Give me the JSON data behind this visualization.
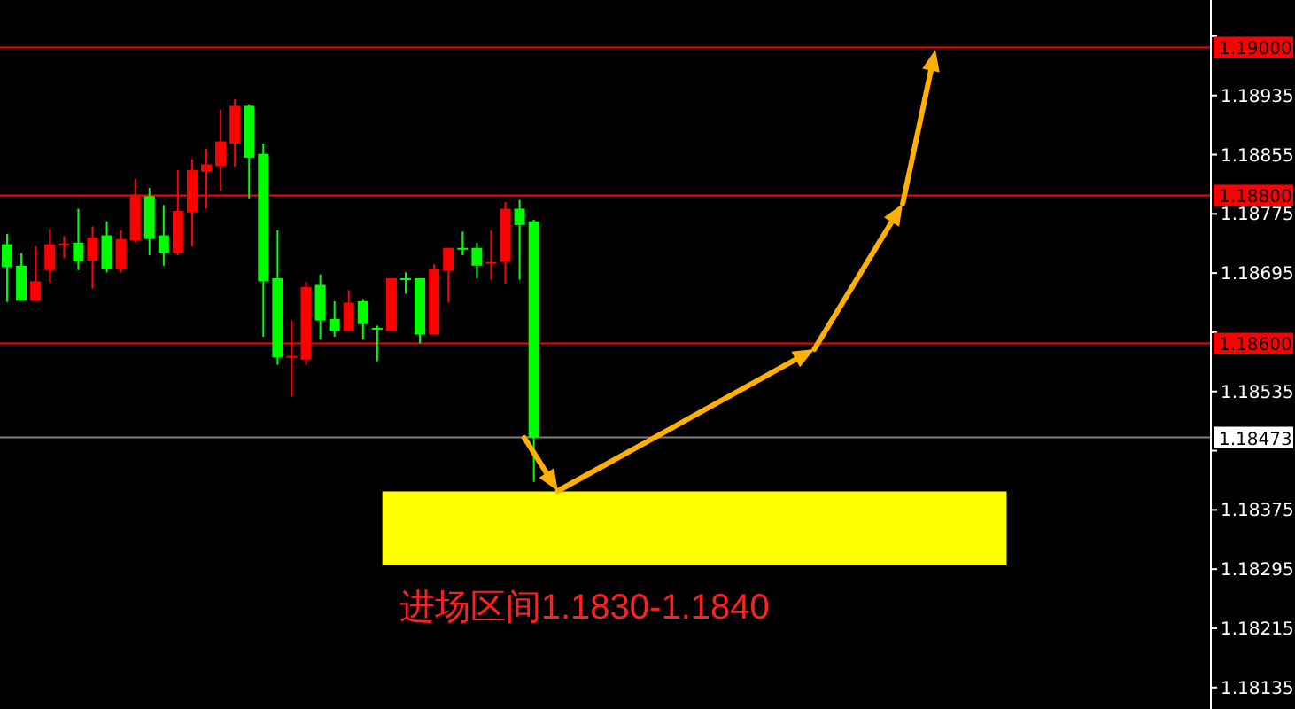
{
  "chart_data": {
    "type": "candlestick",
    "categories": [
      null,
      null,
      null,
      null,
      null,
      null,
      null,
      null,
      null,
      null,
      null,
      null,
      null,
      null,
      null,
      null,
      null,
      null,
      null,
      null,
      null,
      null,
      null,
      null,
      null,
      null,
      null,
      null,
      null,
      null,
      null,
      null,
      null,
      null,
      null,
      null,
      null,
      null,
      null,
      null,
      null,
      null,
      null,
      null,
      null,
      null,
      null,
      null,
      null,
      null,
      null,
      null,
      null,
      null,
      null,
      null,
      null,
      null,
      null,
      null,
      null,
      null,
      null,
      null,
      null,
      null,
      null,
      null,
      null,
      null,
      null,
      null,
      null,
      null,
      null,
      null,
      null,
      null,
      null,
      null,
      null,
      null,
      null,
      null,
      null
    ],
    "ohlc": [
      [
        1.18734,
        1.18748,
        1.18656,
        1.18703
      ],
      [
        1.18705,
        1.18722,
        1.18658,
        1.18658
      ],
      [
        1.18658,
        1.18731,
        1.18658,
        1.18684
      ],
      [
        1.18699,
        1.18755,
        1.18682,
        1.18734
      ],
      [
        1.18735,
        1.18745,
        1.18715,
        1.18735
      ],
      [
        1.18736,
        1.18782,
        1.18699,
        1.18711
      ],
      [
        1.18712,
        1.18758,
        1.18674,
        1.18743
      ],
      [
        1.18746,
        1.18765,
        1.18696,
        1.187
      ],
      [
        1.187,
        1.18753,
        1.18696,
        1.18741
      ],
      [
        1.18739,
        1.18822,
        1.18737,
        1.18801
      ],
      [
        1.18799,
        1.1881,
        1.18719,
        1.18741
      ],
      [
        1.18746,
        1.18787,
        1.18705,
        1.18722
      ],
      [
        1.18722,
        1.18834,
        1.18719,
        1.18779
      ],
      [
        1.18777,
        1.18849,
        1.18731,
        1.18834
      ],
      [
        1.18832,
        1.18863,
        1.18782,
        1.18842
      ],
      [
        1.1884,
        1.18916,
        1.18806,
        1.18873
      ],
      [
        1.1887,
        1.1893,
        1.18839,
        1.18921
      ],
      [
        1.18921,
        1.18923,
        1.18796,
        1.18851
      ],
      [
        1.18856,
        1.1887,
        1.18609,
        1.18684
      ],
      [
        1.18688,
        1.18753,
        1.18571,
        1.18581
      ],
      [
        1.18583,
        1.18631,
        1.18528,
        1.18583
      ],
      [
        1.18578,
        1.18683,
        1.18571,
        1.18676
      ],
      [
        1.18679,
        1.18693,
        1.18605,
        1.18631
      ],
      [
        1.18633,
        1.18657,
        1.18609,
        1.18617
      ],
      [
        1.18617,
        1.18672,
        1.18617,
        1.18655
      ],
      [
        1.18657,
        1.1866,
        1.18605,
        1.18626
      ],
      [
        1.18621,
        1.18624,
        1.18576,
        1.18621
      ],
      [
        1.18617,
        1.18688,
        1.18617,
        1.18688
      ],
      [
        1.18688,
        1.18696,
        1.18667,
        1.18688
      ],
      [
        1.18688,
        1.18688,
        1.186,
        1.18612
      ],
      [
        1.18612,
        1.18707,
        1.18612,
        1.187
      ],
      [
        1.18698,
        1.18729,
        1.18655,
        1.18729
      ],
      [
        1.18729,
        1.18751,
        1.18719,
        1.18729
      ],
      [
        1.18729,
        1.18736,
        1.18688,
        1.18705
      ],
      [
        1.1871,
        1.18753,
        1.18686,
        1.1871
      ],
      [
        1.1871,
        1.18791,
        1.18681,
        1.18782
      ],
      [
        1.18782,
        1.18794,
        1.18686,
        1.1876
      ],
      [
        1.18765,
        1.18767,
        1.18413,
        1.18473
      ],
      null,
      null,
      null,
      null,
      null,
      null,
      null,
      null,
      null,
      null,
      null,
      null,
      null,
      null,
      null,
      null,
      null,
      null,
      null,
      null,
      null,
      null,
      null,
      null,
      null,
      null,
      null,
      null,
      null,
      null,
      null,
      null,
      null,
      null,
      null,
      null,
      null,
      null,
      null,
      null,
      null,
      null,
      null,
      null,
      null,
      null,
      null
    ],
    "colors": [
      "#00ff00",
      "#00ff00",
      "#ff0000",
      "#ff0000",
      "#ff0000",
      "#00ff00",
      "#ff0000",
      "#00ff00",
      "#ff0000",
      "#ff0000",
      "#00ff00",
      "#00ff00",
      "#ff0000",
      "#ff0000",
      "#ff0000",
      "#ff0000",
      "#ff0000",
      "#00ff00",
      "#00ff00",
      "#00ff00",
      "#ff0000",
      "#ff0000",
      "#00ff00",
      "#00ff00",
      "#ff0000",
      "#00ff00",
      "#00ff00",
      "#ff0000",
      "#00ff00",
      "#00ff00",
      "#ff0000",
      "#ff0000",
      "#00ff00",
      "#00ff00",
      "#ff0000",
      "#ff0000",
      "#00ff00",
      "#00ff00",
      null,
      null,
      null,
      null,
      null,
      null,
      null,
      null,
      null,
      null,
      null,
      null,
      null,
      null,
      null,
      null,
      null,
      null,
      null,
      null,
      null,
      null,
      null,
      null,
      null,
      null,
      null,
      null,
      null,
      null,
      null,
      null,
      null,
      null,
      null,
      null,
      null,
      null,
      null,
      null,
      null,
      null,
      null,
      null,
      null,
      null,
      null
    ],
    "ylim": [
      1.18106,
      1.19064
    ],
    "yticks": [
      {
        "value": 1.19015,
        "label": null
      },
      1.18935,
      1.18855,
      1.18775,
      1.18695,
      {
        "value": 1.18615,
        "label": null
      },
      1.18535,
      {
        "value": 1.18455,
        "label": null
      },
      1.18375,
      1.18295,
      1.18215,
      1.18135
    ],
    "tick_labels": "y",
    "ref_lines": [
      {
        "axis": "y",
        "value": 1.19,
        "label": "1.19000",
        "color": "#ff0000"
      },
      {
        "axis": "y",
        "value": 1.188,
        "label": "1.18800",
        "color": "#ff0000"
      },
      {
        "axis": "y",
        "value": 1.186,
        "label": "1.18600",
        "color": "#ff0000"
      },
      {
        "axis": "y",
        "value": 1.18473,
        "label": "1.18473",
        "color": "#808080"
      }
    ],
    "bands": [
      {
        "axis": "y",
        "from": 1.183,
        "to": 1.184,
        "label": "进场区间1.1830-1.1840",
        "color": "#ffff00"
      }
    ]
  }
}
